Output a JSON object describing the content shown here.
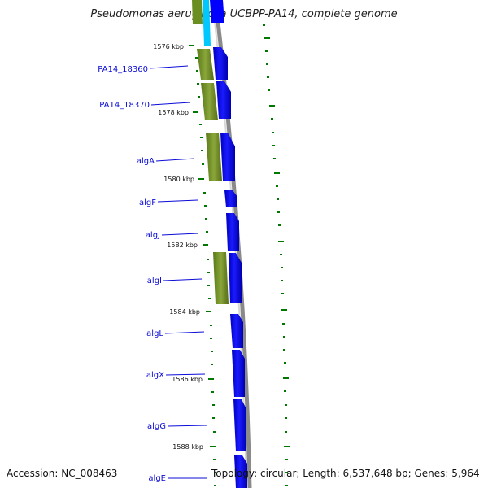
{
  "header": {
    "title": "Pseudomonas aeruginosa UCBPP-PA14, complete genome"
  },
  "footer": {
    "accession": "Accession: NC_008463",
    "topology": "Topology: circular; Length: 6,537,648 bp; Genes: 5,964"
  },
  "map": {
    "kbp_ticks": [
      "1576 kbp",
      "1578 kbp",
      "1580 kbp",
      "1582 kbp",
      "1584 kbp",
      "1586 kbp",
      "1588 kbp"
    ],
    "genes": [
      "PA14_18360",
      "PA14_18370",
      "algA",
      "algF",
      "algJ",
      "algI",
      "algL",
      "algX",
      "algG",
      "algE"
    ],
    "colors": {
      "cds_feature": "#0000ff",
      "gene_feature": "#6b8e23",
      "tick": "#007700",
      "backbone": "#8a8a8a",
      "cyan_feature": "#00c8ff"
    }
  }
}
